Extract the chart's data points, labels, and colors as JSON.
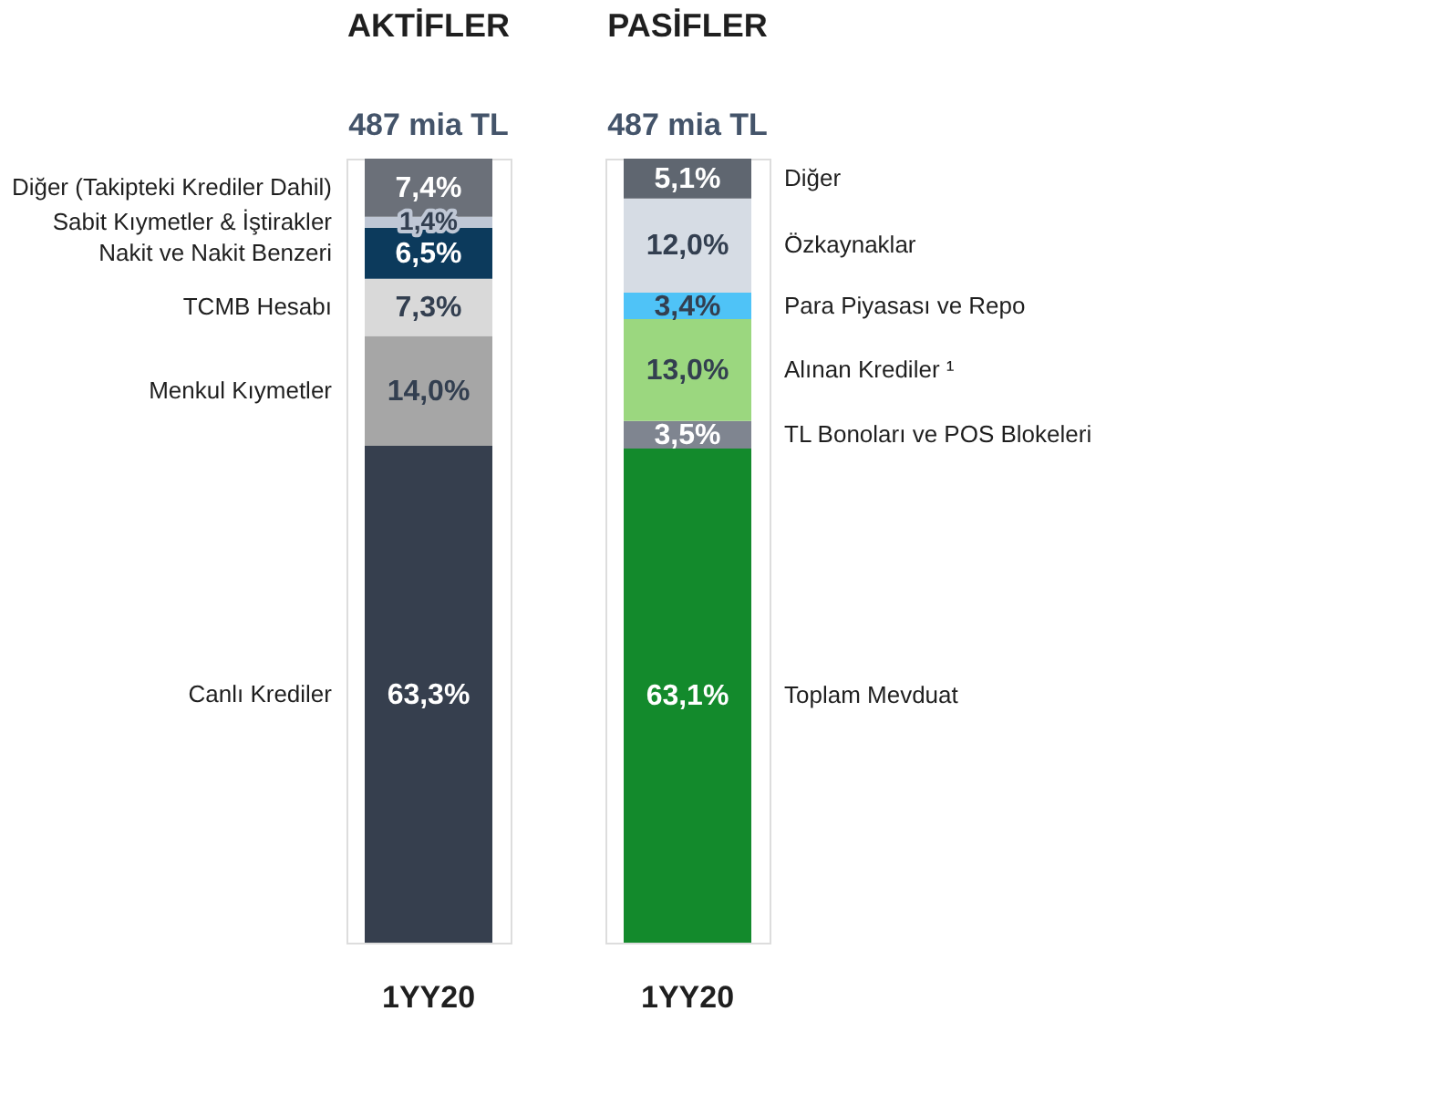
{
  "chart_data": [
    {
      "type": "bar",
      "stacked": true,
      "title": "AKTİFLER",
      "subtitle": "487 mia TL",
      "legend": "left",
      "categories": [
        "1YY20"
      ],
      "tick_labels": "x",
      "data_labels": false,
      "series": [
        {
          "name": "Canlı Krediler",
          "color": "#363f4e",
          "values": [
            63.3
          ],
          "value_labels": [
            "63,3%"
          ]
        },
        {
          "name": "Menkul Kıymetler",
          "color": "#a6a6a6",
          "values": [
            14.0
          ],
          "value_labels": [
            "14,0%"
          ]
        },
        {
          "name": "TCMB Hesabı",
          "color": "#d9d9d9",
          "values": [
            7.3
          ],
          "value_labels": [
            "7,3%"
          ]
        },
        {
          "name": "Nakit ve Nakit Benzeri",
          "color": "#0c3a5c",
          "values": [
            6.5
          ],
          "value_labels": [
            "6,5%"
          ]
        },
        {
          "name": "Sabit Kıymetler & İştirakler",
          "color": "#bfc7d5",
          "values": [
            1.4
          ],
          "value_labels": [
            "1,4%"
          ]
        },
        {
          "name": "Diğer (Takipteki Krediler Dahil)",
          "color": "#6b7079",
          "values": [
            7.4
          ],
          "value_labels": [
            "7,4%"
          ]
        }
      ]
    },
    {
      "type": "bar",
      "stacked": true,
      "title": "PASİFLER",
      "subtitle": "487 mia TL",
      "legend": "right",
      "categories": [
        "1YY20"
      ],
      "tick_labels": "x",
      "data_labels": false,
      "series": [
        {
          "name": "Toplam Mevduat",
          "color": "#138a2c",
          "values": [
            63.1
          ],
          "value_labels": [
            "63,1%"
          ]
        },
        {
          "name": "TL Bonoları ve POS Blokeleri",
          "color": "#7f8590",
          "values": [
            3.5
          ],
          "value_labels": [
            "3,5%"
          ]
        },
        {
          "name": "Alınan Krediler ¹",
          "color": "#9bd77f",
          "values": [
            13.0
          ],
          "value_labels": [
            "13,0%"
          ]
        },
        {
          "name": "Para Piyasası ve Repo",
          "color": "#4fc3f7",
          "values": [
            3.4
          ],
          "value_labels": [
            "3,4%"
          ]
        },
        {
          "name": "Özkaynaklar",
          "color": "#d6dce4",
          "values": [
            12.0
          ],
          "value_labels": [
            "12,0%"
          ]
        },
        {
          "name": "Diğer",
          "color": "#5f6670",
          "values": [
            5.1
          ],
          "value_labels": [
            "5,1%"
          ]
        }
      ]
    }
  ]
}
